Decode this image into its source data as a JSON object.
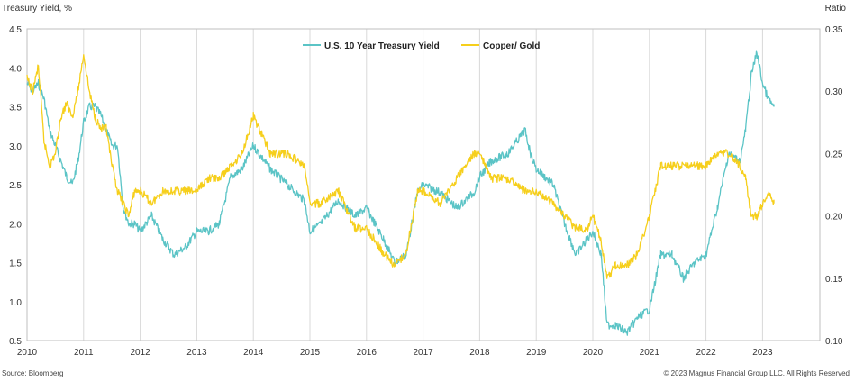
{
  "chart_data": {
    "type": "line",
    "left_axis_title": "Treasury Yield, %",
    "right_axis_title": "Ratio",
    "x_ticks": [
      "2010",
      "2011",
      "2012",
      "2013",
      "2014",
      "2015",
      "2016",
      "2017",
      "2018",
      "2019",
      "2020",
      "2021",
      "2022",
      "2023"
    ],
    "y_left": {
      "range": [
        0.5,
        4.5
      ],
      "ticks": [
        "0.5",
        "1.0",
        "1.5",
        "2.0",
        "2.5",
        "3.0",
        "3.5",
        "4.0",
        "4.5"
      ]
    },
    "y_right": {
      "range": [
        0.1,
        0.35
      ],
      "ticks": [
        "0.10",
        "0.15",
        "0.20",
        "0.25",
        "0.30",
        "0.35"
      ]
    },
    "grid": "vertical",
    "legend_position": "top-center",
    "series": [
      {
        "name": "U.S. 10 Year Treasury Yield",
        "axis": "left",
        "color": "#5bc4c6",
        "x": [
          2010.0,
          2010.1,
          2010.2,
          2010.3,
          2010.4,
          2010.5,
          2010.6,
          2010.7,
          2010.8,
          2010.9,
          2011.0,
          2011.1,
          2011.2,
          2011.3,
          2011.4,
          2011.5,
          2011.6,
          2011.7,
          2011.8,
          2011.9,
          2012.0,
          2012.2,
          2012.4,
          2012.6,
          2012.8,
          2013.0,
          2013.2,
          2013.4,
          2013.6,
          2013.8,
          2014.0,
          2014.3,
          2014.6,
          2014.9,
          2015.0,
          2015.2,
          2015.5,
          2015.8,
          2016.0,
          2016.3,
          2016.5,
          2016.7,
          2016.9,
          2017.0,
          2017.3,
          2017.6,
          2017.9,
          2018.0,
          2018.2,
          2018.5,
          2018.8,
          2018.9,
          2019.0,
          2019.3,
          2019.5,
          2019.7,
          2019.9,
          2020.0,
          2020.15,
          2020.25,
          2020.4,
          2020.6,
          2020.8,
          2021.0,
          2021.2,
          2021.4,
          2021.6,
          2021.8,
          2022.0,
          2022.2,
          2022.4,
          2022.6,
          2022.7,
          2022.8,
          2022.9,
          2023.0,
          2023.1,
          2023.2
        ],
        "values": [
          3.8,
          3.7,
          3.8,
          3.6,
          3.2,
          3.0,
          2.8,
          2.6,
          2.5,
          2.8,
          3.3,
          3.5,
          3.5,
          3.4,
          3.2,
          3.0,
          3.0,
          2.2,
          2.0,
          2.0,
          1.9,
          2.1,
          1.8,
          1.6,
          1.7,
          1.9,
          1.9,
          2.0,
          2.6,
          2.7,
          3.0,
          2.7,
          2.5,
          2.3,
          1.9,
          2.0,
          2.3,
          2.1,
          2.2,
          1.8,
          1.5,
          1.6,
          2.4,
          2.5,
          2.4,
          2.2,
          2.4,
          2.6,
          2.8,
          2.9,
          3.2,
          2.9,
          2.7,
          2.5,
          2.0,
          1.6,
          1.8,
          1.9,
          1.6,
          0.7,
          0.7,
          0.6,
          0.8,
          0.9,
          1.6,
          1.6,
          1.3,
          1.5,
          1.6,
          2.2,
          2.9,
          2.8,
          3.2,
          3.9,
          4.2,
          3.8,
          3.6,
          3.5
        ]
      },
      {
        "name": "Copper/ Gold",
        "axis": "right",
        "color": "#f6cf1c",
        "x": [
          2010.0,
          2010.1,
          2010.2,
          2010.3,
          2010.4,
          2010.5,
          2010.6,
          2010.7,
          2010.8,
          2010.9,
          2011.0,
          2011.1,
          2011.2,
          2011.3,
          2011.4,
          2011.5,
          2011.6,
          2011.7,
          2011.8,
          2011.9,
          2012.0,
          2012.2,
          2012.4,
          2012.6,
          2012.8,
          2013.0,
          2013.2,
          2013.4,
          2013.6,
          2013.8,
          2014.0,
          2014.3,
          2014.6,
          2014.9,
          2015.0,
          2015.2,
          2015.5,
          2015.8,
          2016.0,
          2016.3,
          2016.5,
          2016.7,
          2016.9,
          2017.0,
          2017.3,
          2017.6,
          2017.9,
          2018.0,
          2018.2,
          2018.5,
          2018.8,
          2018.9,
          2019.0,
          2019.3,
          2019.5,
          2019.7,
          2019.9,
          2020.0,
          2020.15,
          2020.25,
          2020.4,
          2020.6,
          2020.8,
          2021.0,
          2021.2,
          2021.4,
          2021.6,
          2021.8,
          2022.0,
          2022.2,
          2022.4,
          2022.6,
          2022.7,
          2022.8,
          2022.9,
          2023.0,
          2023.1,
          2023.2
        ],
        "values": [
          0.31,
          0.3,
          0.32,
          0.26,
          0.24,
          0.25,
          0.28,
          0.29,
          0.28,
          0.3,
          0.33,
          0.3,
          0.28,
          0.27,
          0.27,
          0.24,
          0.22,
          0.21,
          0.2,
          0.22,
          0.22,
          0.21,
          0.22,
          0.22,
          0.22,
          0.22,
          0.23,
          0.23,
          0.24,
          0.25,
          0.28,
          0.25,
          0.25,
          0.24,
          0.21,
          0.21,
          0.22,
          0.19,
          0.19,
          0.17,
          0.16,
          0.17,
          0.22,
          0.22,
          0.21,
          0.23,
          0.25,
          0.25,
          0.23,
          0.23,
          0.22,
          0.22,
          0.22,
          0.21,
          0.2,
          0.19,
          0.19,
          0.2,
          0.18,
          0.15,
          0.16,
          0.16,
          0.17,
          0.2,
          0.24,
          0.24,
          0.24,
          0.24,
          0.24,
          0.25,
          0.25,
          0.24,
          0.23,
          0.2,
          0.2,
          0.21,
          0.22,
          0.21
        ]
      }
    ]
  },
  "footer": {
    "source": "Source: Bloomberg",
    "copyright": "© 2023 Magnus Financial Group LLC. All Rights Reserved"
  }
}
